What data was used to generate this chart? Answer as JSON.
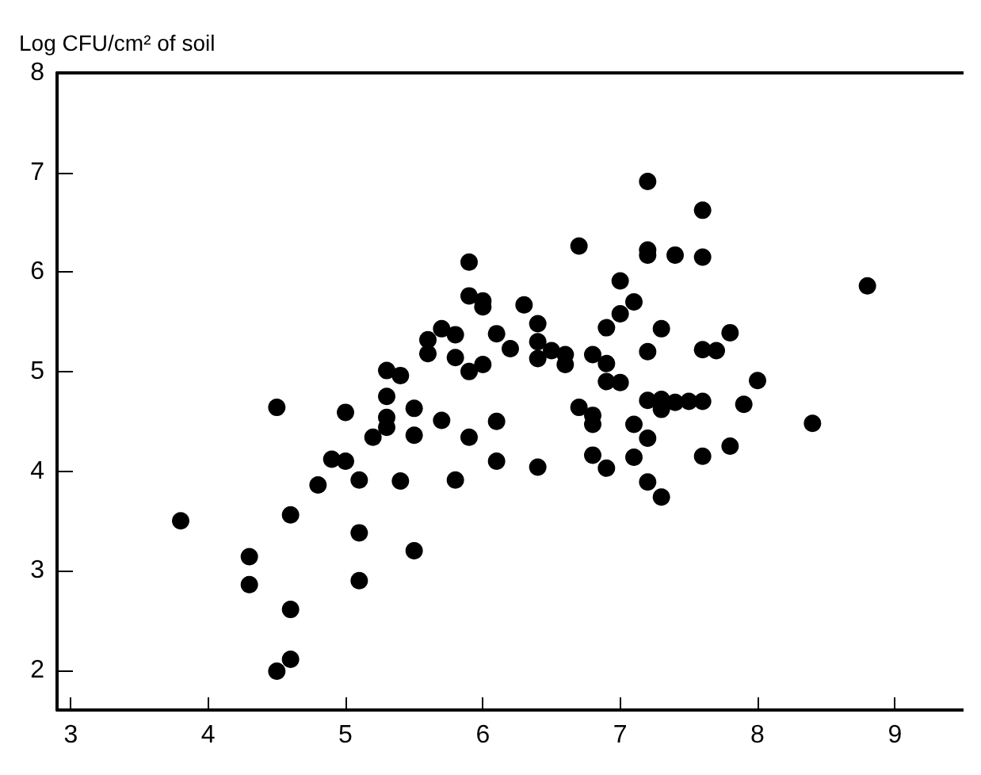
{
  "chart_data": {
    "type": "scatter",
    "ylabel": "Log CFU/cm² of soil",
    "xlim": [
      2.9,
      9.5
    ],
    "xticks": [
      3,
      4,
      5,
      6,
      7,
      8,
      9
    ],
    "ylim": [
      1.6,
      8
    ],
    "yticks": [
      2,
      3,
      4,
      5,
      6,
      7,
      8
    ],
    "grid": false,
    "marker": "circle",
    "series": [
      {
        "color": "#000000",
        "x": [
          3.8,
          4.3,
          4.3,
          4.5,
          4.5,
          4.6,
          4.6,
          4.6,
          4.8,
          4.9,
          5.0,
          5.0,
          5.1,
          5.1,
          5.1,
          5.2,
          5.3,
          5.3,
          5.3,
          5.3,
          5.4,
          5.4,
          5.5,
          5.5,
          5.5,
          5.6,
          5.6,
          5.7,
          5.7,
          5.8,
          5.8,
          5.8,
          5.9,
          5.9,
          5.9,
          5.9,
          6.0,
          6.0,
          6.0,
          6.1,
          6.1,
          6.1,
          6.2,
          6.3,
          6.4,
          6.4,
          6.4,
          6.4,
          6.5,
          6.6,
          6.6,
          6.7,
          6.7,
          6.8,
          6.8,
          6.8,
          6.8,
          6.9,
          6.9,
          6.9,
          6.9,
          7.0,
          7.0,
          7.0,
          7.1,
          7.1,
          7.1,
          7.2,
          7.2,
          7.2,
          7.2,
          7.2,
          7.2,
          7.2,
          7.3,
          7.3,
          7.3,
          7.3,
          7.4,
          7.4,
          7.5,
          7.6,
          7.6,
          7.6,
          7.6,
          7.6,
          7.7,
          7.8,
          7.8,
          7.9,
          8.0,
          8.4,
          8.8
        ],
        "values": [
          3.5,
          3.14,
          2.86,
          4.64,
          1.99,
          3.56,
          2.61,
          2.11,
          3.86,
          4.12,
          4.1,
          4.59,
          3.91,
          3.38,
          2.9,
          4.34,
          5.01,
          4.75,
          4.54,
          4.44,
          4.96,
          3.9,
          4.63,
          4.36,
          3.2,
          5.32,
          5.18,
          4.51,
          5.43,
          5.37,
          5.14,
          3.91,
          6.1,
          5.76,
          5.0,
          4.34,
          5.71,
          5.65,
          5.07,
          5.38,
          4.5,
          4.1,
          5.23,
          5.67,
          5.48,
          5.3,
          5.13,
          4.04,
          5.21,
          5.17,
          5.07,
          6.26,
          4.64,
          5.17,
          4.56,
          4.47,
          4.16,
          5.44,
          5.08,
          4.9,
          4.03,
          5.91,
          5.58,
          4.89,
          5.7,
          4.47,
          4.14,
          6.91,
          6.22,
          6.17,
          5.2,
          4.71,
          4.33,
          3.89,
          5.43,
          4.72,
          4.62,
          3.74,
          4.69,
          6.17,
          4.7,
          6.62,
          6.15,
          5.22,
          4.7,
          4.15,
          5.21,
          5.39,
          4.25,
          4.67,
          4.91,
          4.48,
          5.86
        ]
      }
    ]
  }
}
